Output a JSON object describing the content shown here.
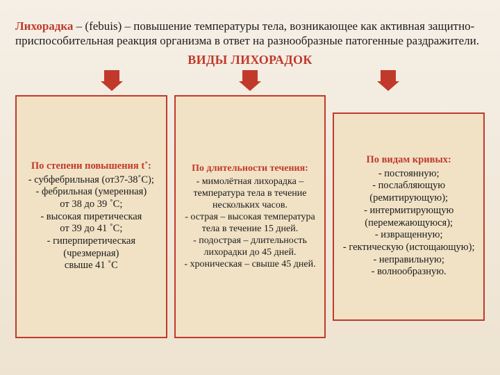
{
  "colors": {
    "accent": "#c0392b",
    "card_bg": "#f1e2c5",
    "card_border": "#c0392b",
    "arrow_fill": "#c0392b",
    "text": "#1a1a1a",
    "page_bg_top": "#f5efe6",
    "page_bg_bottom": "#eee3d0"
  },
  "intro": {
    "term": "Лихорадка",
    "rest": " – (febuis) – повышение температуры тела, возникающее как активная защитно-приспособительная реакция организма в ответ на разнообразные патогенные раздражители."
  },
  "section_title": "ВИДЫ ЛИХОРАДОК",
  "columns": [
    {
      "title": "По степени повышения t˚:",
      "items": [
        "- субфебрильная (от37-38˚С);",
        "- фебрильная (умеренная)",
        "от 38 до 39 ˚С;",
        "- высокая пиретическая",
        "от 39 до 41 ˚С;",
        "- гиперпиретическая (чрезмерная)",
        "свыше 41 ˚С"
      ]
    },
    {
      "title": "По длительности течения:",
      "items": [
        "- мимолётная лихорадка – температура тела в течение нескольких часов.",
        "- острая – высокая температура тела в течение 15 дней.",
        "- подострая – длительность лихорадки до 45 дней.",
        "- хроническая – свыше 45 дней."
      ]
    },
    {
      "title": "По видам кривых:",
      "items": [
        "- постоянную;",
        "- послабляющую (ремитирующую);",
        "- интермитирующую (перемежающуюся);",
        "- извращенную;",
        "- гектическую (истощающую);",
        "- неправильную;",
        "- волнообразную."
      ]
    }
  ]
}
